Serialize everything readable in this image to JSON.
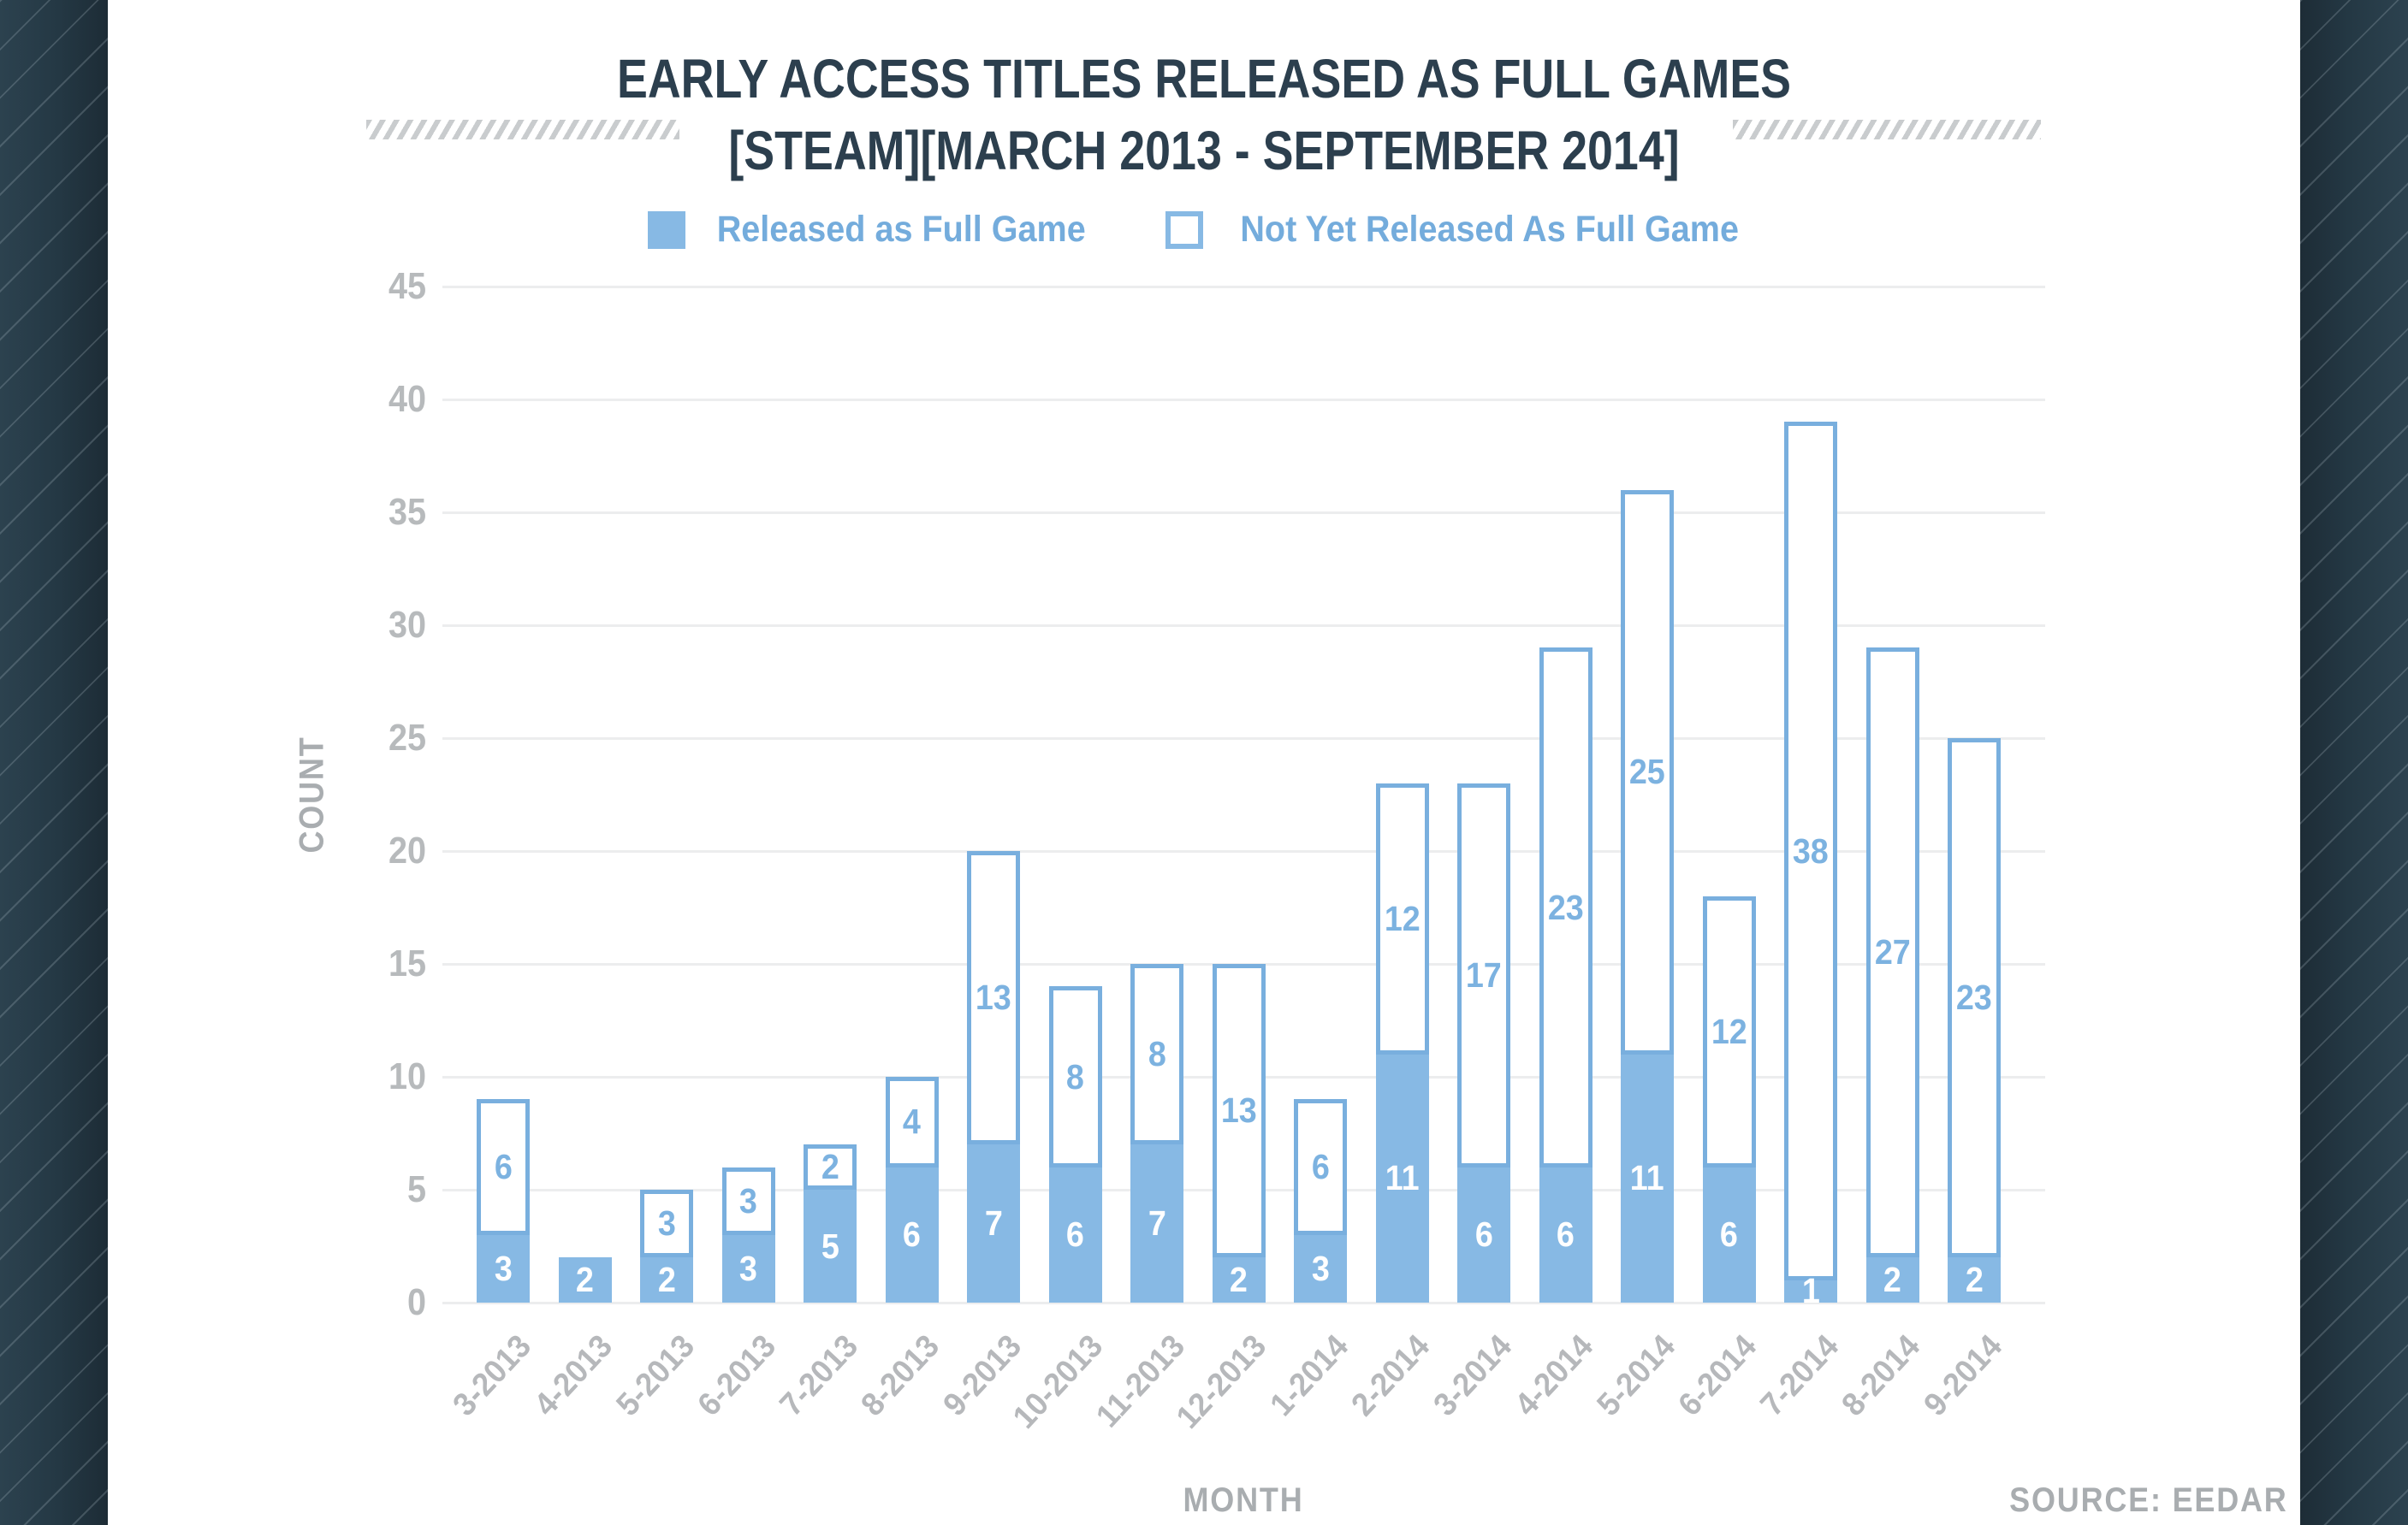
{
  "title": {
    "line1": "EARLY ACCESS TITLES RELEASED AS FULL GAMES",
    "line2": "[STEAM][MARCH 2013 - SEPTEMBER 2014]"
  },
  "source_label": "SOURCE: EEDAR",
  "chart_data": {
    "type": "bar",
    "stacked": true,
    "title": "EARLY ACCESS TITLES RELEASED AS FULL GAMES [STEAM][MARCH 2013 - SEPTEMBER 2014]",
    "xlabel": "MONTH",
    "ylabel": "COUNT",
    "ylim": [
      0,
      45
    ],
    "ytick_step": 5,
    "yticks": [
      0,
      5,
      10,
      15,
      20,
      25,
      30,
      35,
      40,
      45
    ],
    "grid": true,
    "legend_position": "top",
    "categories": [
      "3-2013",
      "4-2013",
      "5-2013",
      "6-2013",
      "7-2013",
      "8-2013",
      "9-2013",
      "10-2013",
      "11-2013",
      "12-2013",
      "1-2014",
      "2-2014",
      "3-2014",
      "4-2014",
      "5-2014",
      "6-2014",
      "7-2014",
      "8-2014",
      "9-2014"
    ],
    "series": [
      {
        "name": "Released as Full Game",
        "style": "filled",
        "values": [
          3,
          2,
          2,
          3,
          5,
          6,
          7,
          6,
          7,
          2,
          3,
          11,
          6,
          6,
          11,
          6,
          1,
          2,
          2
        ]
      },
      {
        "name": "Not Yet Released As Full Game",
        "style": "outlined",
        "values": [
          6,
          0,
          3,
          3,
          2,
          4,
          13,
          8,
          8,
          13,
          6,
          12,
          17,
          23,
          25,
          12,
          38,
          27,
          23
        ]
      }
    ],
    "totals": [
      9,
      2,
      5,
      6,
      7,
      10,
      20,
      14,
      15,
      15,
      9,
      23,
      23,
      29,
      36,
      18,
      39,
      29,
      25
    ],
    "colors": {
      "bar_fill_blue": "#87b9e4",
      "bar_outline_blue": "#79afde",
      "value_label_blue": "#7cb2e0",
      "value_label_white": "#ffffff",
      "title_color": "#2c3f4e",
      "tick_gray": "#b7babc",
      "axis_label_gray": "#a9adb0",
      "gridline": "#ecedee",
      "background_dark": "#243844"
    }
  }
}
